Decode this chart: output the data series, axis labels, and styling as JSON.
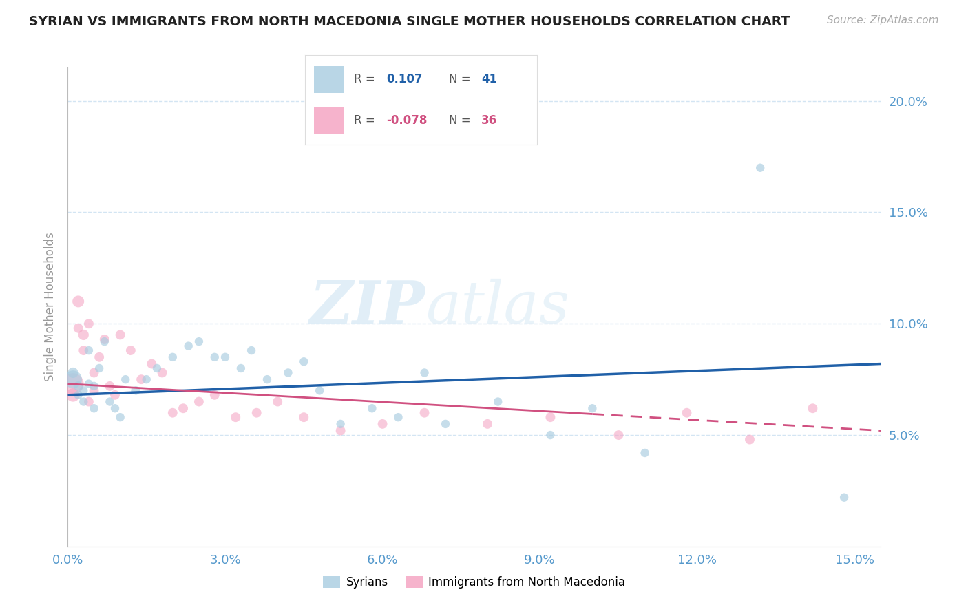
{
  "title": "SYRIAN VS IMMIGRANTS FROM NORTH MACEDONIA SINGLE MOTHER HOUSEHOLDS CORRELATION CHART",
  "source": "Source: ZipAtlas.com",
  "ylabel": "Single Mother Households",
  "watermark_zip": "ZIP",
  "watermark_atlas": "atlas",
  "xlim": [
    0.0,
    0.155
  ],
  "ylim": [
    0.0,
    0.215
  ],
  "xticks": [
    0.0,
    0.03,
    0.06,
    0.09,
    0.12,
    0.15
  ],
  "yticks": [
    0.05,
    0.1,
    0.15,
    0.2
  ],
  "ytick_labels": [
    "5.0%",
    "10.0%",
    "15.0%",
    "20.0%"
  ],
  "xtick_labels": [
    "0.0%",
    "3.0%",
    "6.0%",
    "9.0%",
    "12.0%",
    "15.0%"
  ],
  "legend_label_blue": "Syrians",
  "legend_label_pink": "Immigrants from North Macedonia",
  "blue_scatter_color": "#a8cce0",
  "pink_scatter_color": "#f4a0c0",
  "blue_line_color": "#2060a8",
  "pink_line_color": "#d05080",
  "grid_color": "#c8dff0",
  "background_color": "#ffffff",
  "title_color": "#222222",
  "tick_color": "#5599cc",
  "syrians_x": [
    0.001,
    0.001,
    0.002,
    0.002,
    0.003,
    0.003,
    0.004,
    0.004,
    0.005,
    0.005,
    0.006,
    0.007,
    0.008,
    0.009,
    0.01,
    0.011,
    0.013,
    0.015,
    0.017,
    0.02,
    0.023,
    0.025,
    0.028,
    0.03,
    0.033,
    0.035,
    0.038,
    0.042,
    0.045,
    0.048,
    0.052,
    0.058,
    0.063,
    0.068,
    0.072,
    0.082,
    0.092,
    0.1,
    0.11,
    0.132,
    0.148
  ],
  "syrians_y": [
    0.075,
    0.078,
    0.072,
    0.068,
    0.07,
    0.065,
    0.073,
    0.088,
    0.062,
    0.072,
    0.08,
    0.092,
    0.065,
    0.062,
    0.058,
    0.075,
    0.07,
    0.075,
    0.08,
    0.085,
    0.09,
    0.092,
    0.085,
    0.085,
    0.08,
    0.088,
    0.075,
    0.078,
    0.083,
    0.07,
    0.055,
    0.062,
    0.058,
    0.078,
    0.055,
    0.065,
    0.05,
    0.062,
    0.042,
    0.17,
    0.022
  ],
  "syrians_size": [
    350,
    120,
    100,
    80,
    80,
    80,
    80,
    80,
    80,
    80,
    80,
    80,
    80,
    80,
    80,
    80,
    80,
    80,
    80,
    80,
    80,
    80,
    80,
    80,
    80,
    80,
    80,
    80,
    80,
    80,
    80,
    80,
    80,
    80,
    80,
    80,
    80,
    80,
    80,
    80,
    80
  ],
  "nmacedonia_x": [
    0.001,
    0.001,
    0.002,
    0.002,
    0.003,
    0.003,
    0.004,
    0.004,
    0.005,
    0.005,
    0.006,
    0.007,
    0.008,
    0.009,
    0.01,
    0.012,
    0.014,
    0.016,
    0.018,
    0.02,
    0.022,
    0.025,
    0.028,
    0.032,
    0.036,
    0.04,
    0.045,
    0.052,
    0.06,
    0.068,
    0.08,
    0.092,
    0.105,
    0.118,
    0.13,
    0.142
  ],
  "nmacedonia_y": [
    0.073,
    0.068,
    0.11,
    0.098,
    0.095,
    0.088,
    0.1,
    0.065,
    0.078,
    0.07,
    0.085,
    0.093,
    0.072,
    0.068,
    0.095,
    0.088,
    0.075,
    0.082,
    0.078,
    0.06,
    0.062,
    0.065,
    0.068,
    0.058,
    0.06,
    0.065,
    0.058,
    0.052,
    0.055,
    0.06,
    0.055,
    0.058,
    0.05,
    0.06,
    0.048,
    0.062
  ],
  "nmacedonia_size": [
    500,
    200,
    150,
    100,
    120,
    100,
    100,
    100,
    100,
    100,
    100,
    100,
    100,
    100,
    100,
    100,
    100,
    100,
    100,
    100,
    100,
    100,
    100,
    100,
    100,
    100,
    100,
    100,
    100,
    100,
    100,
    100,
    100,
    100,
    100,
    100
  ],
  "blue_trend_start": 0.068,
  "blue_trend_end": 0.082,
  "pink_trend_start": 0.073,
  "pink_trend_end": 0.052
}
